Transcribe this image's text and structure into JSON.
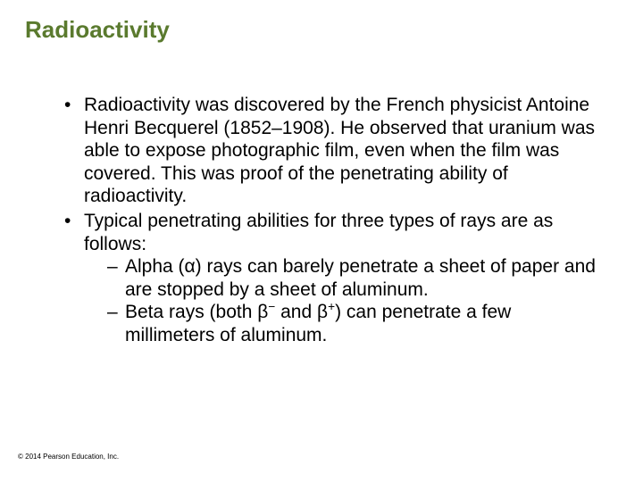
{
  "title": {
    "text": "Radioactivity",
    "color": "#5a7a2e",
    "fontsize": 26
  },
  "body": {
    "color": "#000000",
    "fontsize": 21,
    "line_height": 1.22,
    "bullets": [
      {
        "text": "Radioactivity was discovered by the French physicist Antoine Henri Becquerel (1852–1908). He observed that uranium was able to expose photographic film, even when the film was covered. This was proof of the penetrating ability of radioactivity."
      },
      {
        "text": "Typical penetrating abilities for three types of rays are as follows:",
        "sub": [
          {
            "html": "Alpha (α) rays can barely penetrate a sheet of paper and are stopped by a sheet of aluminum."
          },
          {
            "html": "Beta rays (both β<sup>−</sup> and β<sup>+</sup>) can penetrate a few millimeters of aluminum."
          }
        ]
      }
    ]
  },
  "copyright": {
    "text": "© 2014 Pearson Education, Inc.",
    "color": "#000000",
    "fontsize": 8
  },
  "background_color": "#ffffff"
}
